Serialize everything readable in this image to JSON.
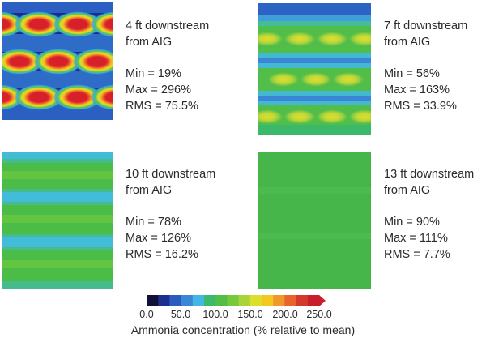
{
  "panels": [
    {
      "title_l1": "4 ft downstream",
      "title_l2": "from AIG",
      "min": "Min = 19%",
      "max": "Max = 296%",
      "rms": "RMS = 75.5%",
      "uniformity": "strong-hotspots"
    },
    {
      "title_l1": "7 ft downstream",
      "title_l2": "from AIG",
      "min": "Min = 56%",
      "max": "Max = 163%",
      "rms": "RMS = 33.9%",
      "uniformity": "moderate"
    },
    {
      "title_l1": "10 ft downstream",
      "title_l2": "from AIG",
      "min": "Min = 78%",
      "max": "Max = 126%",
      "rms": "RMS = 16.2%",
      "uniformity": "bands"
    },
    {
      "title_l1": "13 ft downstream",
      "title_l2": "from AIG",
      "min": "Min = 90%",
      "max": "Max = 111%",
      "rms": "RMS = 7.7%",
      "uniformity": "near-uniform"
    }
  ],
  "colorbar": {
    "ticks": [
      "0.0",
      "50.0",
      "100.0",
      "150.0",
      "200.0",
      "250.0"
    ],
    "colors": [
      "#10103a",
      "#1d2f8c",
      "#2c5bc0",
      "#3a87d6",
      "#42b6e6",
      "#3cb86a",
      "#52be48",
      "#78c83c",
      "#a8d43a",
      "#dcde2c",
      "#f4c820",
      "#f0982a",
      "#e8642c",
      "#d43a2c",
      "#c8202a"
    ],
    "caption": "Ammonia concentration (% relative to mean)"
  }
}
